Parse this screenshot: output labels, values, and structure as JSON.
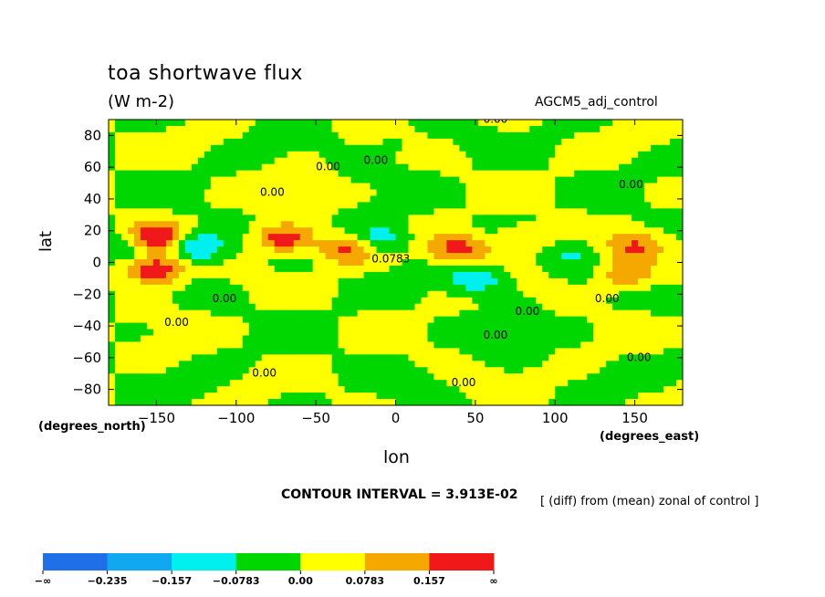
{
  "chart_data": {
    "type": "heatmap",
    "title": "toa shortwave flux",
    "units": "(W m-2)",
    "dataset": "AGCM5_adj_control",
    "xlabel": "lon",
    "ylabel": "lat",
    "xlabel_units": "(degrees_east)",
    "ylabel_units": "(degrees_north)",
    "xlim": [
      -180,
      180
    ],
    "ylim": [
      -90,
      90
    ],
    "x_ticks": [
      -150,
      -100,
      -50,
      0,
      50,
      100,
      150
    ],
    "x_tick_labels": [
      "−150",
      "−100",
      "−50",
      "0",
      "50",
      "100",
      "150"
    ],
    "y_ticks": [
      80,
      60,
      40,
      20,
      0,
      -20,
      -40,
      -60,
      -80
    ],
    "y_tick_labels": [
      "80",
      "60",
      "40",
      "20",
      "0",
      "−20",
      "−40",
      "−60",
      "−80"
    ],
    "contour_interval_text": "CONTOUR INTERVAL = 3.913E-02",
    "contour_labels": [
      "0.00",
      "0.00",
      "0.00",
      "0.00",
      "0.00",
      "0.00",
      "0.00",
      "0.00",
      "0.00",
      "0.00",
      "0.00",
      "0.00",
      "0.00",
      "0.0783"
    ],
    "note": "[ (diff) from (mean) zonal of control ]",
    "colorbar": {
      "levels": [
        "−∞",
        "−0.235",
        "−0.157",
        "−0.0783",
        "0.00",
        "0.0783",
        "0.157",
        "∞"
      ],
      "colors": [
        "#1f6fe8",
        "#10a8f0",
        "#00f0f0",
        "#00d700",
        "#ffff00",
        "#f5a800",
        "#f01818"
      ]
    },
    "anomaly_centers": [
      {
        "lon": -150,
        "lat": 15,
        "value": 0.25
      },
      {
        "lon": -150,
        "lat": -5,
        "value": 0.25
      },
      {
        "lon": -70,
        "lat": 15,
        "value": 0.22
      },
      {
        "lon": -30,
        "lat": 8,
        "value": 0.18
      },
      {
        "lon": 40,
        "lat": 8,
        "value": 0.22
      },
      {
        "lon": 80,
        "lat": 15,
        "value": 0.12
      },
      {
        "lon": 150,
        "lat": 10,
        "value": 0.14
      },
      {
        "lon": 145,
        "lat": -8,
        "value": 0.16
      },
      {
        "lon": -125,
        "lat": 10,
        "value": -0.2
      },
      {
        "lon": -10,
        "lat": 15,
        "value": -0.15
      },
      {
        "lon": 50,
        "lat": -10,
        "value": -0.17
      },
      {
        "lon": 110,
        "lat": 5,
        "value": -0.08
      },
      {
        "lon": -170,
        "lat": 10,
        "value": -0.1
      },
      {
        "lon": 0,
        "lat": 75,
        "value": -0.03
      },
      {
        "lon": 0,
        "lat": -75,
        "value": -0.03
      }
    ]
  }
}
